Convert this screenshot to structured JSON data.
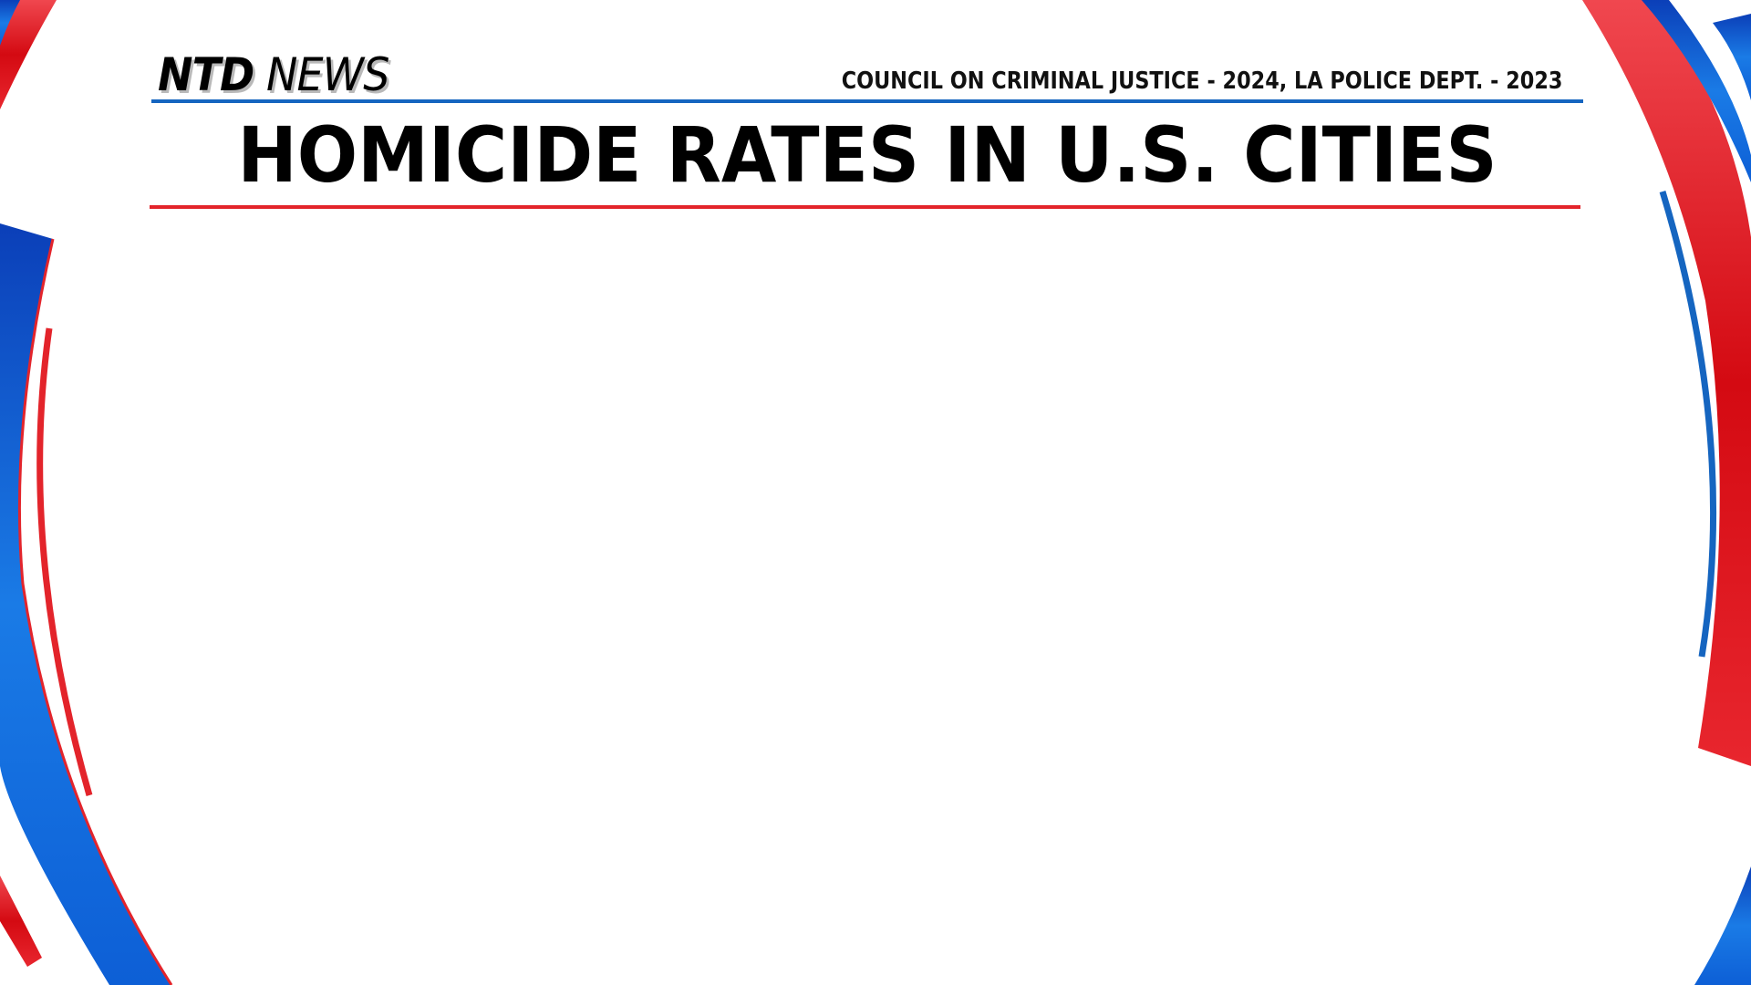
{
  "branding": {
    "logo_primary": "NTD",
    "logo_secondary": "NEWS"
  },
  "header": {
    "source": "COUNCIL ON CRIMINAL JUSTICE - 2024, LA POLICE DEPT. - 2023",
    "title": "HOMICIDE RATES IN U.S. CITIES"
  },
  "theme": {
    "accent_blue": "#1565c0",
    "accent_red": "#e3242b",
    "background": "#ffffff"
  }
}
